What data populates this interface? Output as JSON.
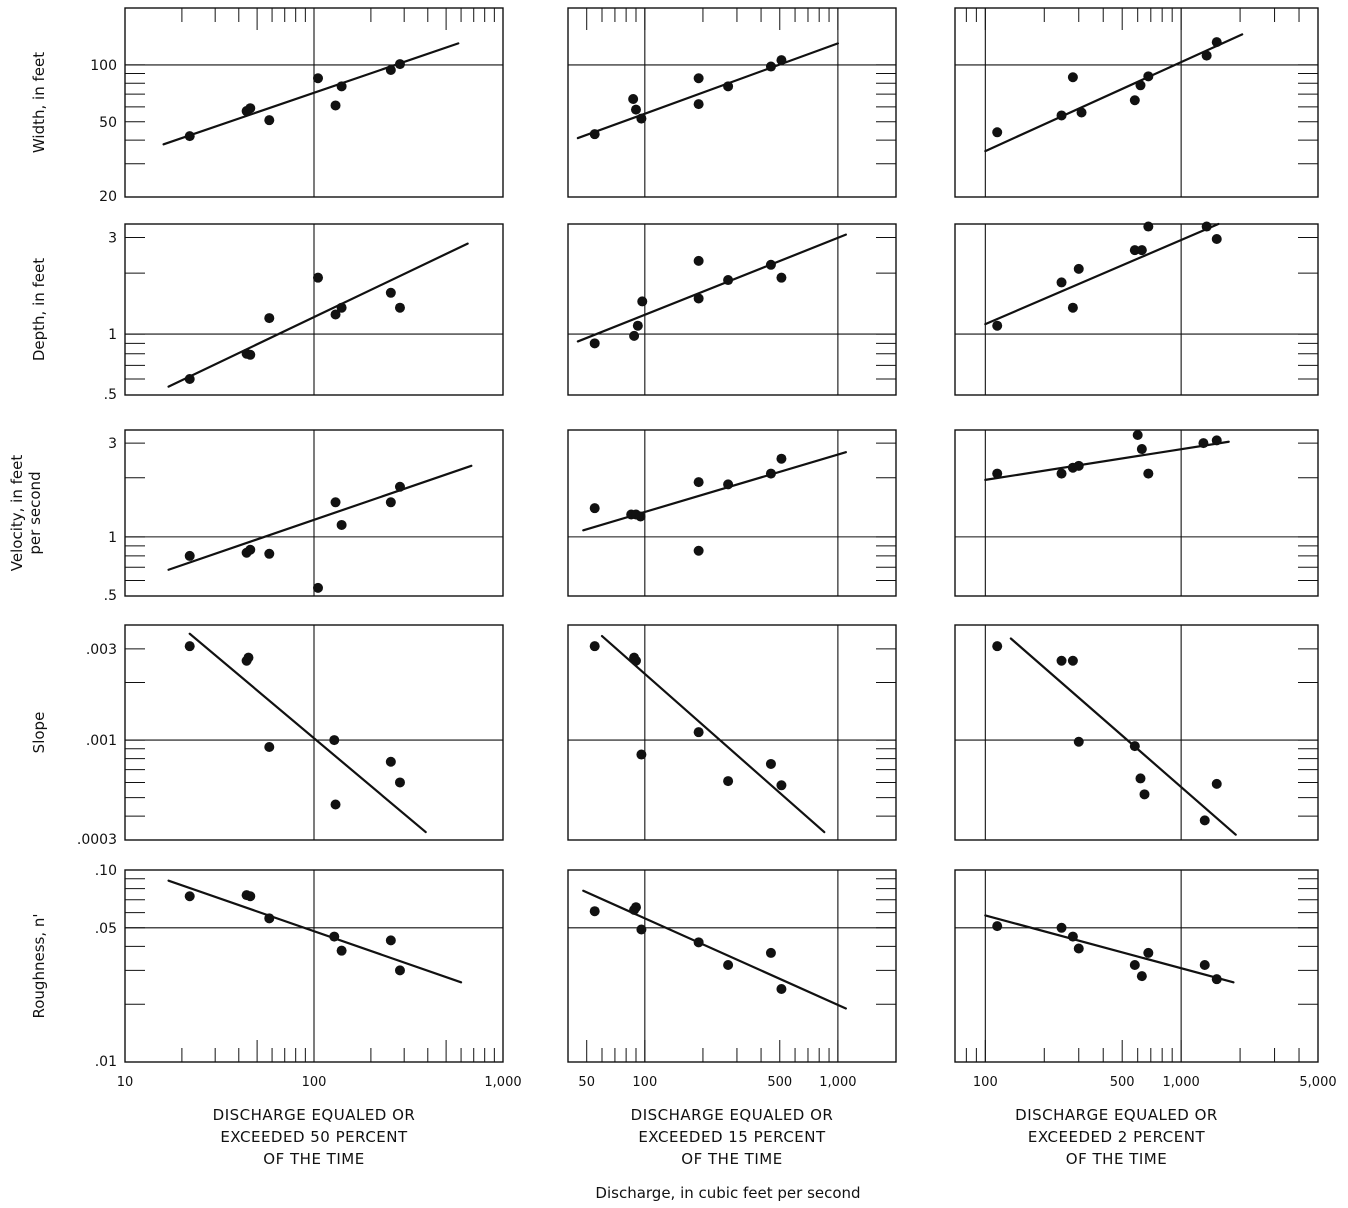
{
  "figure": {
    "x_axis_label": "Discharge, in cubic feet per second"
  },
  "row_labels": [
    [
      "Width, in feet"
    ],
    [
      "Depth, in feet"
    ],
    [
      "Velocity, in feet",
      "per second"
    ],
    [
      "Slope"
    ],
    [
      "Roughness, n'"
    ]
  ],
  "y_axes": [
    {
      "scale": "log",
      "range": [
        20,
        200
      ],
      "ticks": [
        {
          "value": 20,
          "label": "20"
        },
        {
          "value": 50,
          "label": "50"
        },
        {
          "value": 100,
          "label": "100"
        }
      ]
    },
    {
      "scale": "log",
      "range": [
        0.5,
        3.5
      ],
      "ticks": [
        {
          "value": 0.5,
          "label": ".5"
        },
        {
          "value": 1,
          "label": "1"
        },
        {
          "value": 3,
          "label": "3"
        }
      ]
    },
    {
      "scale": "log",
      "range": [
        0.5,
        3.5
      ],
      "ticks": [
        {
          "value": 0.5,
          "label": ".5"
        },
        {
          "value": 1,
          "label": "1"
        },
        {
          "value": 3,
          "label": "3"
        }
      ]
    },
    {
      "scale": "log",
      "range": [
        0.0003,
        0.004
      ],
      "ticks": [
        {
          "value": 0.0003,
          "label": ".0003"
        },
        {
          "value": 0.001,
          "label": ".001"
        },
        {
          "value": 0.003,
          "label": ".003"
        }
      ]
    },
    {
      "scale": "log",
      "range": [
        0.01,
        0.1
      ],
      "ticks": [
        {
          "value": 0.01,
          "label": ".01"
        },
        {
          "value": 0.05,
          "label": ".05"
        },
        {
          "value": 0.1,
          "label": ".10"
        }
      ]
    }
  ],
  "columns": [
    {
      "title": [
        "DISCHARGE EQUALED OR",
        "EXCEEDED 50 PERCENT",
        "OF THE TIME"
      ],
      "x_scale": "log",
      "x_range": [
        10,
        1000
      ],
      "x_ticks": [
        {
          "value": 10,
          "label": "10"
        },
        {
          "value": 100,
          "label": "100"
        },
        {
          "value": 1000,
          "label": "1,000"
        }
      ]
    },
    {
      "title": [
        "DISCHARGE EQUALED OR",
        "EXCEEDED 15 PERCENT",
        "OF THE TIME"
      ],
      "x_scale": "log",
      "x_range": [
        40,
        2000
      ],
      "x_ticks": [
        {
          "value": 50,
          "label": "50"
        },
        {
          "value": 100,
          "label": "100"
        },
        {
          "value": 500,
          "label": "500"
        },
        {
          "value": 1000,
          "label": "1,000"
        }
      ]
    },
    {
      "title": [
        "DISCHARGE EQUALED OR",
        "EXCEEDED 2 PERCENT",
        "OF THE TIME"
      ],
      "x_scale": "log",
      "x_range": [
        70,
        5000
      ],
      "x_ticks": [
        {
          "value": 100,
          "label": "100"
        },
        {
          "value": 500,
          "label": "500"
        },
        {
          "value": 1000,
          "label": "1,000"
        },
        {
          "value": 5000,
          "label": "5,000"
        }
      ]
    }
  ],
  "chart_data": [
    {
      "type": "scatter",
      "row": 0,
      "col": 0,
      "points": [
        [
          22,
          42
        ],
        [
          44,
          57
        ],
        [
          46,
          59
        ],
        [
          58,
          51
        ],
        [
          105,
          85
        ],
        [
          130,
          61
        ],
        [
          140,
          77
        ],
        [
          255,
          94
        ],
        [
          285,
          101
        ]
      ],
      "fit": [
        [
          16,
          38
        ],
        [
          580,
          130
        ]
      ]
    },
    {
      "type": "scatter",
      "row": 0,
      "col": 1,
      "points": [
        [
          55,
          43
        ],
        [
          87,
          66
        ],
        [
          90,
          58
        ],
        [
          96,
          52
        ],
        [
          190,
          85
        ],
        [
          190,
          62
        ],
        [
          270,
          77
        ],
        [
          450,
          98
        ],
        [
          510,
          106
        ]
      ],
      "fit": [
        [
          45,
          41
        ],
        [
          1000,
          130
        ]
      ]
    },
    {
      "type": "scatter",
      "row": 0,
      "col": 2,
      "points": [
        [
          115,
          44
        ],
        [
          245,
          54
        ],
        [
          280,
          86
        ],
        [
          310,
          56
        ],
        [
          580,
          65
        ],
        [
          620,
          78
        ],
        [
          680,
          87
        ],
        [
          1350,
          112
        ],
        [
          1520,
          132
        ]
      ],
      "fit": [
        [
          100,
          35
        ],
        [
          2050,
          145
        ]
      ]
    },
    {
      "type": "scatter",
      "row": 1,
      "col": 0,
      "points": [
        [
          22,
          0.6
        ],
        [
          44,
          0.8
        ],
        [
          46,
          0.79
        ],
        [
          58,
          1.2
        ],
        [
          105,
          1.9
        ],
        [
          130,
          1.25
        ],
        [
          140,
          1.35
        ],
        [
          255,
          1.6
        ],
        [
          285,
          1.35
        ]
      ],
      "fit": [
        [
          17,
          0.55
        ],
        [
          650,
          2.8
        ]
      ]
    },
    {
      "type": "scatter",
      "row": 1,
      "col": 1,
      "points": [
        [
          55,
          0.9
        ],
        [
          88,
          0.98
        ],
        [
          92,
          1.1
        ],
        [
          97,
          1.45
        ],
        [
          190,
          1.5
        ],
        [
          190,
          2.3
        ],
        [
          270,
          1.85
        ],
        [
          450,
          2.2
        ],
        [
          510,
          1.9
        ]
      ],
      "fit": [
        [
          45,
          0.92
        ],
        [
          1100,
          3.1
        ]
      ]
    },
    {
      "type": "scatter",
      "row": 1,
      "col": 2,
      "points": [
        [
          115,
          1.1
        ],
        [
          245,
          1.8
        ],
        [
          280,
          1.35
        ],
        [
          300,
          2.1
        ],
        [
          580,
          2.6
        ],
        [
          630,
          2.6
        ],
        [
          680,
          3.4
        ],
        [
          1350,
          3.4
        ],
        [
          1520,
          2.95
        ]
      ],
      "fit": [
        [
          100,
          1.12
        ],
        [
          1550,
          3.5
        ]
      ]
    },
    {
      "type": "scatter",
      "row": 2,
      "col": 0,
      "points": [
        [
          22,
          0.8
        ],
        [
          44,
          0.83
        ],
        [
          46,
          0.86
        ],
        [
          58,
          0.82
        ],
        [
          105,
          0.55
        ],
        [
          130,
          1.5
        ],
        [
          140,
          1.15
        ],
        [
          255,
          1.5
        ],
        [
          285,
          1.8
        ]
      ],
      "fit": [
        [
          17,
          0.68
        ],
        [
          680,
          2.3
        ]
      ]
    },
    {
      "type": "scatter",
      "row": 2,
      "col": 1,
      "points": [
        [
          55,
          1.4
        ],
        [
          85,
          1.3
        ],
        [
          90,
          1.3
        ],
        [
          95,
          1.27
        ],
        [
          190,
          0.85
        ],
        [
          190,
          1.9
        ],
        [
          270,
          1.85
        ],
        [
          450,
          2.1
        ],
        [
          510,
          2.5
        ]
      ],
      "fit": [
        [
          48,
          1.08
        ],
        [
          1100,
          2.7
        ]
      ]
    },
    {
      "type": "scatter",
      "row": 2,
      "col": 2,
      "points": [
        [
          115,
          2.1
        ],
        [
          245,
          2.1
        ],
        [
          280,
          2.25
        ],
        [
          300,
          2.3
        ],
        [
          600,
          3.3
        ],
        [
          630,
          2.8
        ],
        [
          680,
          2.1
        ],
        [
          1300,
          3.0
        ],
        [
          1520,
          3.1
        ]
      ],
      "fit": [
        [
          100,
          1.95
        ],
        [
          1750,
          3.05
        ]
      ]
    },
    {
      "type": "scatter",
      "row": 3,
      "col": 0,
      "points": [
        [
          22,
          0.0031
        ],
        [
          44,
          0.0026
        ],
        [
          45,
          0.0027
        ],
        [
          58,
          0.00092
        ],
        [
          128,
          0.001
        ],
        [
          130,
          0.00046
        ],
        [
          255,
          0.00077
        ],
        [
          285,
          0.0006
        ]
      ],
      "fit": [
        [
          22,
          0.0036
        ],
        [
          390,
          0.00033
        ]
      ]
    },
    {
      "type": "scatter",
      "row": 3,
      "col": 1,
      "points": [
        [
          55,
          0.0031
        ],
        [
          88,
          0.0027
        ],
        [
          90,
          0.0026
        ],
        [
          96,
          0.00084
        ],
        [
          190,
          0.0011
        ],
        [
          270,
          0.00061
        ],
        [
          450,
          0.00075
        ],
        [
          510,
          0.00058
        ]
      ],
      "fit": [
        [
          60,
          0.0035
        ],
        [
          850,
          0.00033
        ]
      ]
    },
    {
      "type": "scatter",
      "row": 3,
      "col": 2,
      "points": [
        [
          115,
          0.0031
        ],
        [
          245,
          0.0026
        ],
        [
          280,
          0.0026
        ],
        [
          300,
          0.00098
        ],
        [
          580,
          0.00093
        ],
        [
          620,
          0.00063
        ],
        [
          650,
          0.00052
        ],
        [
          1320,
          0.00038
        ],
        [
          1520,
          0.00059
        ]
      ],
      "fit": [
        [
          135,
          0.0034
        ],
        [
          1900,
          0.00032
        ]
      ]
    },
    {
      "type": "scatter",
      "row": 4,
      "col": 0,
      "points": [
        [
          22,
          0.073
        ],
        [
          44,
          0.074
        ],
        [
          46,
          0.073
        ],
        [
          58,
          0.056
        ],
        [
          128,
          0.045
        ],
        [
          140,
          0.038
        ],
        [
          255,
          0.043
        ],
        [
          285,
          0.03
        ]
      ],
      "fit": [
        [
          17,
          0.088
        ],
        [
          600,
          0.026
        ]
      ]
    },
    {
      "type": "scatter",
      "row": 4,
      "col": 1,
      "points": [
        [
          55,
          0.061
        ],
        [
          88,
          0.062
        ],
        [
          90,
          0.064
        ],
        [
          96,
          0.049
        ],
        [
          190,
          0.042
        ],
        [
          270,
          0.032
        ],
        [
          450,
          0.037
        ],
        [
          510,
          0.024
        ]
      ],
      "fit": [
        [
          48,
          0.078
        ],
        [
          1100,
          0.019
        ]
      ]
    },
    {
      "type": "scatter",
      "row": 4,
      "col": 2,
      "points": [
        [
          115,
          0.051
        ],
        [
          245,
          0.05
        ],
        [
          280,
          0.045
        ],
        [
          300,
          0.039
        ],
        [
          580,
          0.032
        ],
        [
          630,
          0.028
        ],
        [
          680,
          0.037
        ],
        [
          1320,
          0.032
        ],
        [
          1520,
          0.027
        ]
      ],
      "fit": [
        [
          100,
          0.058
        ],
        [
          1850,
          0.026
        ]
      ]
    }
  ]
}
